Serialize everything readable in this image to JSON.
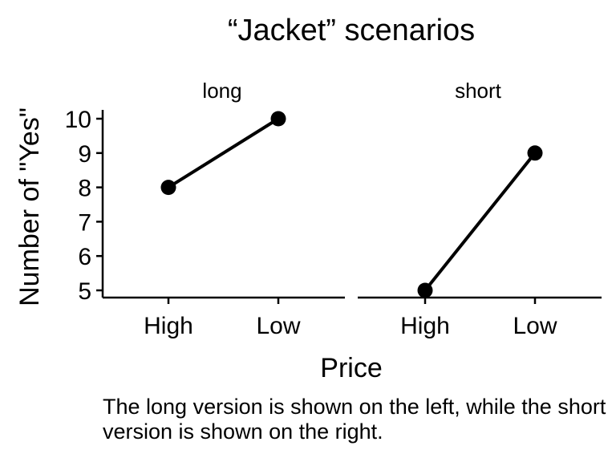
{
  "chart_data": {
    "type": "line",
    "title": "“Jacket” scenarios",
    "xlabel": "Price",
    "ylabel": "Number of \"Yes\"",
    "categories": [
      "High",
      "Low"
    ],
    "ylim": [
      5,
      10
    ],
    "yticks": [
      5,
      6,
      7,
      8,
      9,
      10
    ],
    "panels": [
      {
        "name": "long",
        "values": [
          8,
          10
        ]
      },
      {
        "name": "short",
        "values": [
          5,
          9
        ]
      }
    ]
  },
  "caption": "The long version is shown on the left, while the short version is shown on the right."
}
